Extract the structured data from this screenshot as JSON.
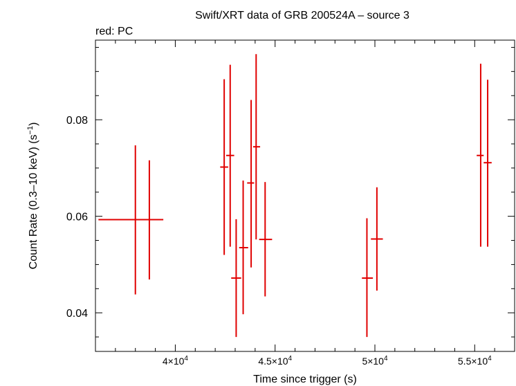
{
  "chart_data": {
    "type": "scatter",
    "title": "Swift/XRT data of GRB 200524A – source 3",
    "subtitle": "red: PC",
    "xlabel": "Time since trigger (s)",
    "ylabel_main": "Count Rate (0.3–10 keV) (s",
    "ylabel_sup": "−1",
    "ylabel_end": ")",
    "xlim": [
      36000,
      57000
    ],
    "ylim": [
      0.032,
      0.0965
    ],
    "x_ticks": [
      {
        "value": 40000,
        "mant": "4×10",
        "exp": "4"
      },
      {
        "value": 45000,
        "mant": "4.5×10",
        "exp": "4"
      },
      {
        "value": 50000,
        "mant": "5×10",
        "exp": "4"
      },
      {
        "value": 55000,
        "mant": "5.5×10",
        "exp": "4"
      }
    ],
    "y_ticks": [
      {
        "value": 0.04,
        "label": "0.04"
      },
      {
        "value": 0.06,
        "label": "0.06"
      },
      {
        "value": 0.08,
        "label": "0.08"
      }
    ],
    "series": [
      {
        "color": "#e00000",
        "points": [
          {
            "x": 38000,
            "xlo": 36150,
            "xhi": 38700,
            "y": 0.0593,
            "ylo": 0.0438,
            "yhi": 0.0747
          },
          {
            "x": 38700,
            "xlo": 38000,
            "xhi": 39400,
            "y": 0.0593,
            "ylo": 0.0469,
            "yhi": 0.0716
          },
          {
            "x": 42450,
            "xlo": 42250,
            "xhi": 42650,
            "y": 0.0702,
            "ylo": 0.052,
            "yhi": 0.0884
          },
          {
            "x": 42750,
            "xlo": 42550,
            "xhi": 42950,
            "y": 0.0726,
            "ylo": 0.0537,
            "yhi": 0.0914
          },
          {
            "x": 43050,
            "xlo": 42800,
            "xhi": 43300,
            "y": 0.0472,
            "ylo": 0.035,
            "yhi": 0.0594
          },
          {
            "x": 43400,
            "xlo": 43200,
            "xhi": 43650,
            "y": 0.0535,
            "ylo": 0.0397,
            "yhi": 0.0674
          },
          {
            "x": 43800,
            "xlo": 43600,
            "xhi": 43950,
            "y": 0.0669,
            "ylo": 0.0494,
            "yhi": 0.0841
          },
          {
            "x": 44050,
            "xlo": 43900,
            "xhi": 44250,
            "y": 0.0744,
            "ylo": 0.0552,
            "yhi": 0.0936
          },
          {
            "x": 44500,
            "xlo": 44200,
            "xhi": 44850,
            "y": 0.0552,
            "ylo": 0.0434,
            "yhi": 0.0671
          },
          {
            "x": 49600,
            "xlo": 49350,
            "xhi": 49900,
            "y": 0.0472,
            "ylo": 0.035,
            "yhi": 0.0596
          },
          {
            "x": 50100,
            "xlo": 49800,
            "xhi": 50400,
            "y": 0.0553,
            "ylo": 0.0446,
            "yhi": 0.066
          },
          {
            "x": 55300,
            "xlo": 55100,
            "xhi": 55450,
            "y": 0.0726,
            "ylo": 0.0537,
            "yhi": 0.0916
          },
          {
            "x": 55650,
            "xlo": 55450,
            "xhi": 55850,
            "y": 0.0711,
            "ylo": 0.0537,
            "yhi": 0.0883
          }
        ]
      }
    ],
    "grid": false,
    "legend": "none"
  }
}
